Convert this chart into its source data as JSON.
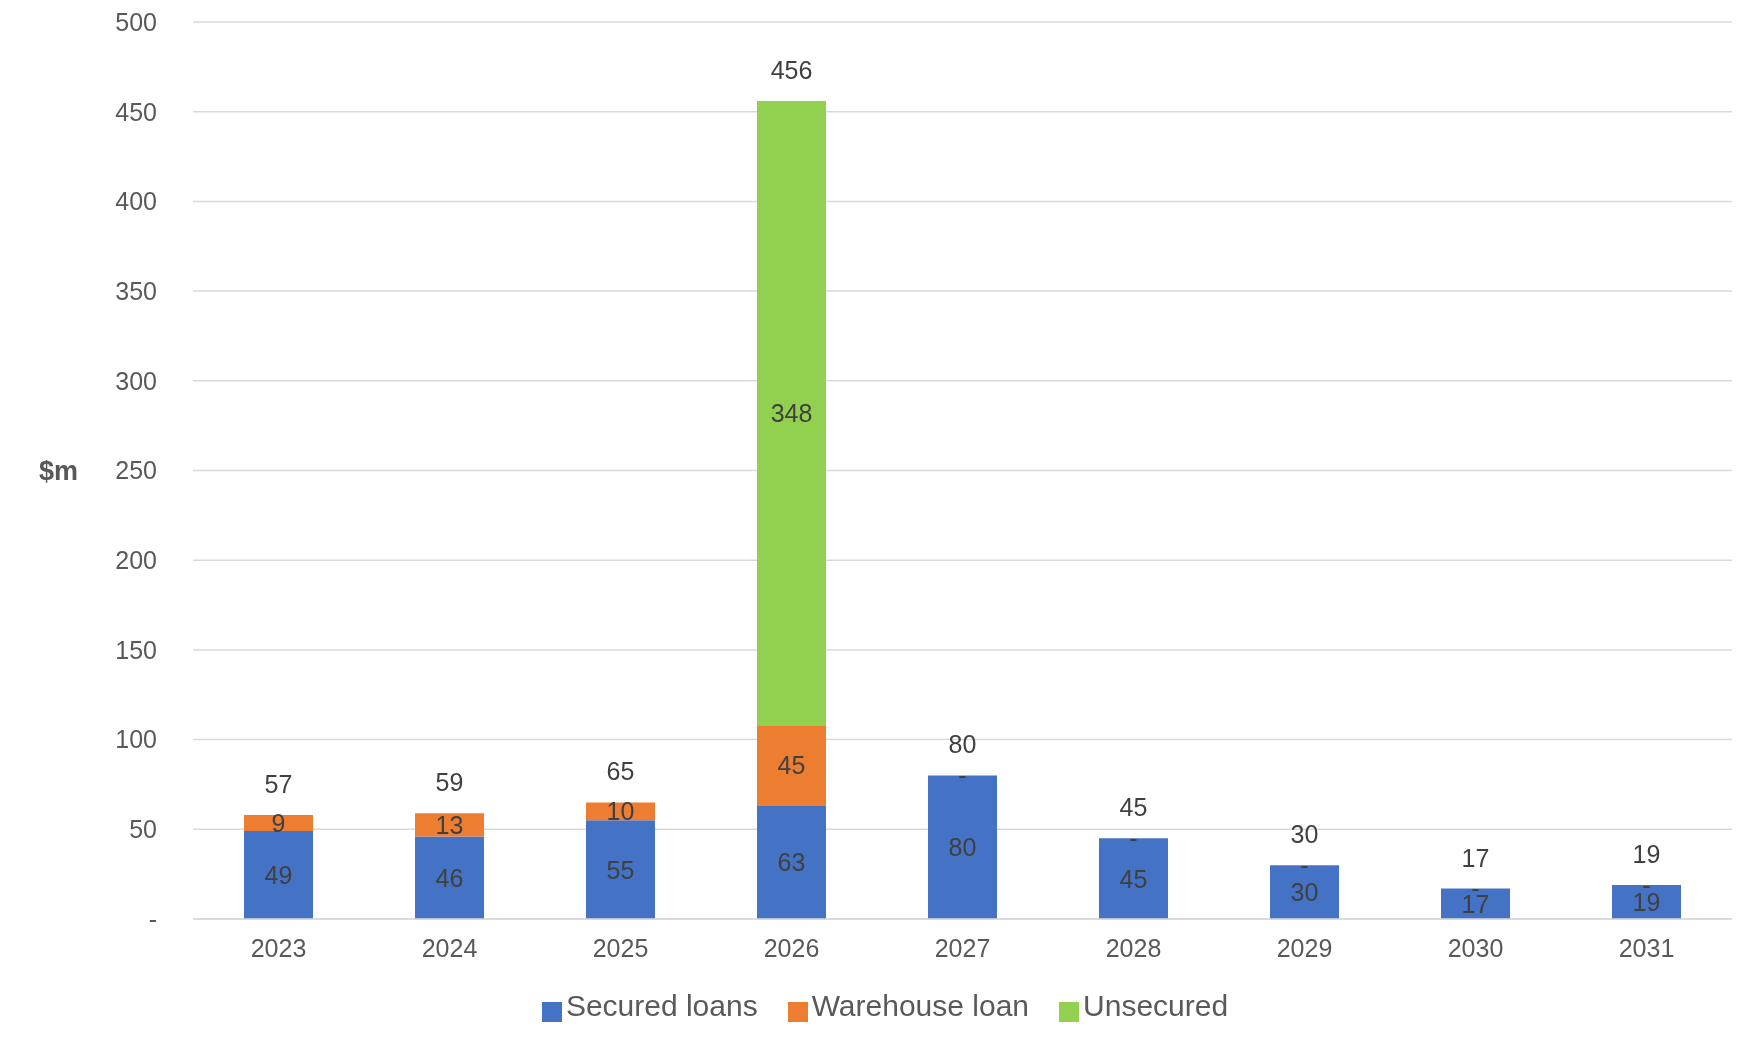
{
  "chart_data": {
    "type": "bar",
    "stacked": true,
    "ylabel": "$m",
    "categories": [
      "2023",
      "2024",
      "2025",
      "2026",
      "2027",
      "2028",
      "2029",
      "2030",
      "2031"
    ],
    "series": [
      {
        "name": "Secured loans",
        "color": "#4472c4",
        "values": [
          49,
          46,
          55,
          63,
          80,
          45,
          30,
          17,
          19
        ],
        "value_labels": [
          "49",
          "46",
          "55",
          "63",
          "80",
          "45",
          "30",
          "17",
          "19"
        ]
      },
      {
        "name": "Warehouse loan",
        "color": "#ed7d31",
        "values": [
          9,
          13,
          10,
          45,
          0,
          0,
          0,
          0,
          0
        ],
        "value_labels": [
          "9",
          "13",
          "10",
          "45",
          "-",
          "-",
          "-",
          "-",
          "-"
        ]
      },
      {
        "name": "Unsecured",
        "color": "#92d050",
        "values": [
          null,
          null,
          null,
          348,
          null,
          null,
          null,
          null,
          null
        ],
        "value_labels": [
          null,
          null,
          null,
          "348",
          null,
          null,
          null,
          null,
          null
        ]
      }
    ],
    "totals": [
      "57",
      "59",
      "65",
      "456",
      "80",
      "45",
      "30",
      "17",
      "19"
    ],
    "ylim": [
      0,
      500
    ],
    "yticks": [
      {
        "value": 0,
        "label": "-"
      },
      50,
      100,
      150,
      200,
      250,
      300,
      350,
      400,
      450,
      500
    ],
    "grid": "y",
    "legend": "bottom"
  }
}
